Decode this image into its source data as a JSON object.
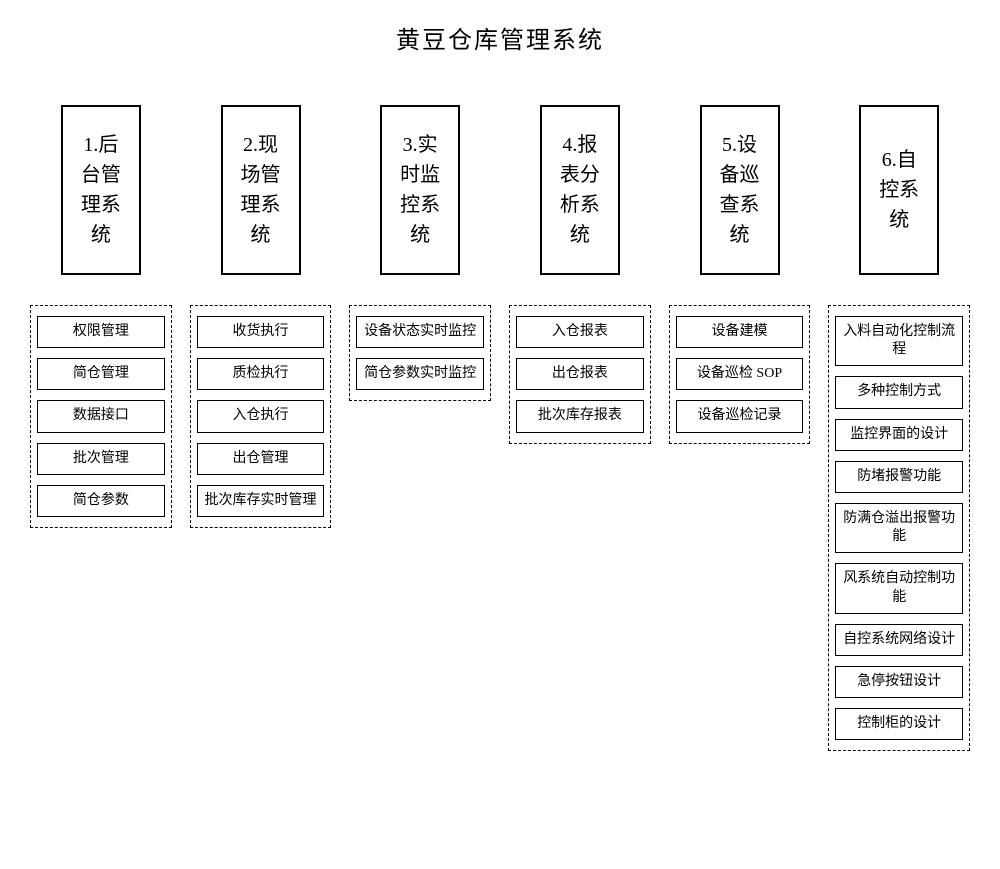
{
  "title": "黄豆仓库管理系统",
  "colors": {
    "background": "#ffffff",
    "text": "#000000",
    "border": "#000000"
  },
  "typography": {
    "title_fontsize": 24,
    "main_box_fontsize": 20,
    "sub_box_fontsize": 14,
    "font_family": "SimSun"
  },
  "layout": {
    "column_count": 6,
    "main_box_width": 80,
    "main_box_height": 170,
    "main_box_border_width": 2,
    "sub_container_border_style": "dashed",
    "sub_box_border_width": 1
  },
  "columns": [
    {
      "main": "1.后台管理系统",
      "subs": [
        "权限管理",
        "简仓管理",
        "数据接口",
        "批次管理",
        "简仓参数"
      ]
    },
    {
      "main": "2.现场管理系统",
      "subs": [
        "收货执行",
        "质检执行",
        "入仓执行",
        "出仓管理",
        "批次库存实时管理"
      ]
    },
    {
      "main": "3.实时监控系统",
      "subs": [
        "设备状态实时监控",
        "简仓参数实时监控"
      ]
    },
    {
      "main": "4.报表分析系统",
      "subs": [
        "入仓报表",
        "出仓报表",
        "批次库存报表"
      ]
    },
    {
      "main": "5.设备巡查系统",
      "subs": [
        "设备建模",
        "设备巡检 SOP",
        "设备巡检记录"
      ]
    },
    {
      "main": "6.自控系统",
      "subs": [
        "入料自动化控制流程",
        "多种控制方式",
        "监控界面的设计",
        "防堵报警功能",
        "防满仓溢出报警功能",
        "风系统自动控制功能",
        "自控系统网络设计",
        "急停按钮设计",
        "控制柜的设计"
      ]
    }
  ]
}
